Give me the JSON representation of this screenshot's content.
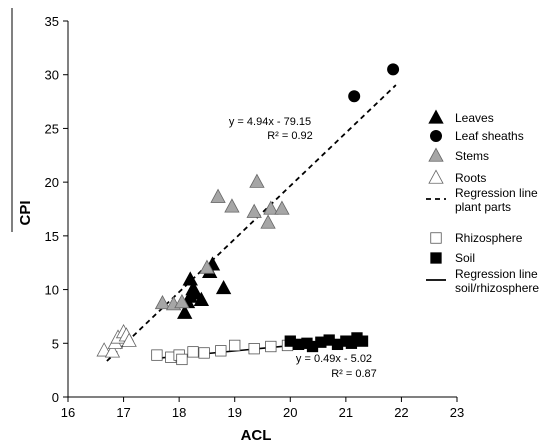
{
  "chart_data": {
    "type": "scatter",
    "title": "",
    "xlabel": "ACL",
    "ylabel": "CPI",
    "xlim": [
      16,
      23
    ],
    "ylim": [
      0,
      35
    ],
    "x_ticks": [
      "16",
      "17",
      "18",
      "19",
      "20",
      "21",
      "22",
      "23"
    ],
    "y_ticks": [
      "0",
      "5",
      "10",
      "15",
      "20",
      "25",
      "30",
      "35"
    ],
    "grid": false,
    "legend_position": "right",
    "series": [
      {
        "name": "Leaves",
        "marker": "triangle",
        "color": "#000000",
        "points": [
          [
            18.1,
            7.8
          ],
          [
            18.15,
            8.8
          ],
          [
            18.2,
            9.3
          ],
          [
            18.25,
            10.0
          ],
          [
            18.3,
            9.6
          ],
          [
            18.2,
            10.9
          ],
          [
            18.4,
            9.0
          ],
          [
            18.55,
            11.6
          ],
          [
            18.6,
            12.3
          ],
          [
            18.8,
            10.1
          ]
        ]
      },
      {
        "name": "Leaf sheaths",
        "marker": "circle",
        "color": "#000000",
        "points": [
          [
            21.15,
            28.0
          ],
          [
            21.85,
            30.5
          ]
        ]
      },
      {
        "name": "Stems",
        "marker": "triangle",
        "color": "#a6a6a6",
        "points": [
          [
            17.7,
            8.7
          ],
          [
            17.9,
            8.6
          ],
          [
            18.05,
            8.8
          ],
          [
            18.5,
            12.0
          ],
          [
            18.7,
            18.6
          ],
          [
            18.95,
            17.7
          ],
          [
            19.35,
            17.2
          ],
          [
            19.4,
            20.0
          ],
          [
            19.6,
            16.2
          ],
          [
            19.65,
            17.5
          ],
          [
            19.85,
            17.5
          ]
        ]
      },
      {
        "name": "Roots",
        "marker": "triangle",
        "color": "#ffffff",
        "points": [
          [
            16.65,
            4.3
          ],
          [
            16.8,
            4.2
          ],
          [
            16.85,
            5.0
          ],
          [
            16.9,
            5.5
          ],
          [
            17.0,
            6.0
          ],
          [
            17.05,
            5.7
          ],
          [
            17.1,
            5.2
          ]
        ]
      },
      {
        "name": "Rhizosphere",
        "marker": "square",
        "color": "#ffffff",
        "points": [
          [
            17.6,
            3.9
          ],
          [
            17.85,
            3.7
          ],
          [
            18.0,
            3.9
          ],
          [
            18.05,
            3.5
          ],
          [
            18.25,
            4.2
          ],
          [
            18.45,
            4.1
          ],
          [
            18.75,
            4.3
          ],
          [
            19.0,
            4.8
          ],
          [
            19.35,
            4.5
          ],
          [
            19.65,
            4.7
          ],
          [
            19.95,
            4.8
          ]
        ]
      },
      {
        "name": "Soil",
        "marker": "square",
        "color": "#000000",
        "points": [
          [
            20.0,
            5.2
          ],
          [
            20.15,
            4.9
          ],
          [
            20.3,
            5.0
          ],
          [
            20.4,
            4.7
          ],
          [
            20.55,
            5.1
          ],
          [
            20.7,
            5.3
          ],
          [
            20.85,
            4.9
          ],
          [
            21.0,
            5.2
          ],
          [
            21.1,
            5.0
          ],
          [
            21.2,
            5.5
          ],
          [
            21.3,
            5.2
          ]
        ]
      }
    ],
    "regressions": [
      {
        "name": "Regression line plant parts",
        "style": "dashed",
        "x_range": [
          16.7,
          21.9
        ],
        "slope": 4.94,
        "intercept": -79.15,
        "equation": "y = 4.94x - 79.15",
        "r2": "R² = 0.92"
      },
      {
        "name": "Regression line soil/rhizosphere",
        "style": "solid",
        "x_range": [
          17.55,
          21.3
        ],
        "slope": 0.49,
        "intercept": -5.02,
        "equation": "y = 0.49x - 5.02",
        "r2": "R² = 0.87"
      }
    ],
    "legend": [
      {
        "label": "Leaves",
        "symbol": "triangle",
        "color": "#000000"
      },
      {
        "label": "Leaf sheaths",
        "symbol": "circle",
        "color": "#000000"
      },
      {
        "label": "Stems",
        "symbol": "triangle",
        "color": "#a6a6a6"
      },
      {
        "label": "Roots",
        "symbol": "triangle",
        "color": "#ffffff"
      },
      {
        "label": "Regression line",
        "label2": "plant parts",
        "symbol": "dashed-line",
        "color": "#000000"
      },
      {
        "label": "Rhizosphere",
        "symbol": "square",
        "color": "#ffffff"
      },
      {
        "label": "Soil",
        "symbol": "square",
        "color": "#000000"
      },
      {
        "label": "Regression line",
        "label2": "soil/rhizosphere",
        "symbol": "solid-line",
        "color": "#000000"
      }
    ]
  }
}
